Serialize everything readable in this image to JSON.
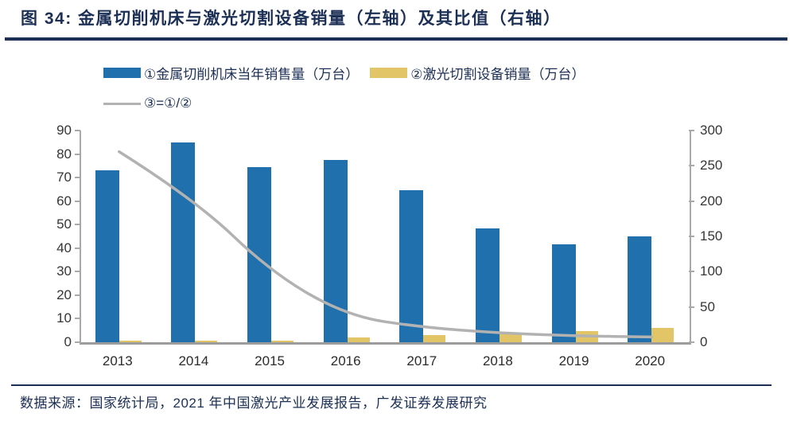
{
  "header": {
    "title": "图 34:  金属切削机床与激光切割设备销量（左轴）及其比值（右轴）"
  },
  "footer": {
    "source": "数据来源：国家统计局，2021 年中国激光产业发展报告，广发证券发展研究"
  },
  "colors": {
    "accent_text": "#1c2f55",
    "machine_bar": "#1f70ad",
    "laser_bar": "#e2c566",
    "ratio_line": "#b2b2b2",
    "axis": "#a9a9a9"
  },
  "chart_data": {
    "type": "bar",
    "subtype": "bar+line combo, dual axis",
    "categories": [
      "2013",
      "2014",
      "2015",
      "2016",
      "2017",
      "2018",
      "2019",
      "2020"
    ],
    "series": [
      {
        "name": "①金属切削机床当年销售量（万台）",
        "type": "bar",
        "axis": "left",
        "color": "#1f70ad",
        "values": [
          73.0,
          85.0,
          74.4,
          77.6,
          64.5,
          48.5,
          41.5,
          44.9
        ]
      },
      {
        "name": "②激光切割设备销量（万台）",
        "type": "bar",
        "axis": "left",
        "color": "#e2c566",
        "values": [
          0.27,
          0.42,
          0.75,
          2.1,
          3.0,
          3.8,
          4.6,
          6.0
        ]
      },
      {
        "name": "③=①/②",
        "type": "line",
        "axis": "right",
        "color": "#b2b2b2",
        "values": [
          270,
          202,
          99,
          37,
          21,
          13,
          9,
          7.5
        ]
      }
    ],
    "left_axis": {
      "min": 0,
      "max": 90,
      "step": 10,
      "ticks": [
        0,
        10,
        20,
        30,
        40,
        50,
        60,
        70,
        80,
        90
      ]
    },
    "right_axis": {
      "min": 0,
      "max": 300,
      "step": 50,
      "ticks": [
        0,
        50,
        100,
        150,
        200,
        250,
        300
      ]
    },
    "legend_position": "top-left",
    "grid": false,
    "plot_background": "#ffffff"
  }
}
